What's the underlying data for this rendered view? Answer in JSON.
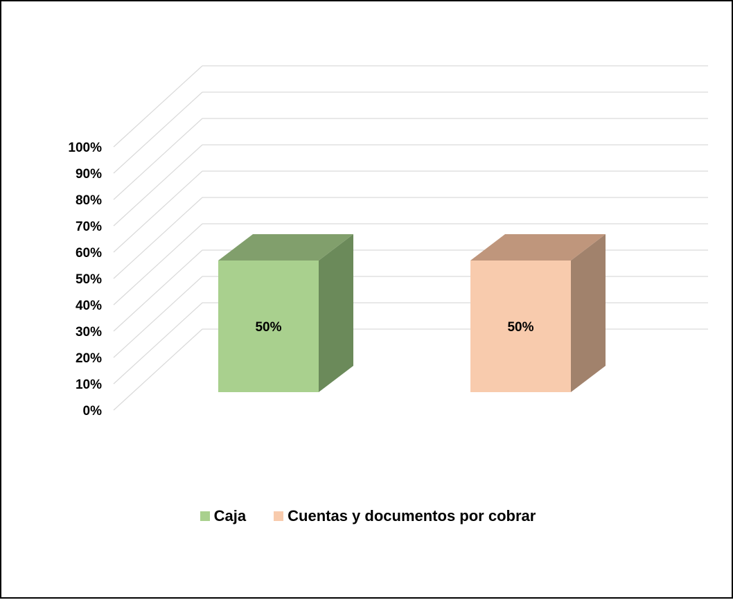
{
  "chart_data": {
    "type": "bar",
    "categories": [
      "Caja",
      "Cuentas y documentos por cobrar"
    ],
    "values": [
      50,
      50
    ],
    "value_suffix": "%",
    "data_labels": [
      "50%",
      "50%"
    ],
    "yticks": [
      "0%",
      "10%",
      "20%",
      "30%",
      "40%",
      "50%",
      "60%",
      "70%",
      "80%",
      "90%",
      "100%"
    ],
    "ylim": [
      0,
      100
    ],
    "grid": true,
    "legend_position": "bottom",
    "style": "3d-column",
    "colors": {
      "caja": {
        "front": "#a9d08e",
        "side": "#6b8a5a",
        "top": "#819f6c"
      },
      "cuentas": {
        "front": "#f8cbad",
        "side": "#a1826c",
        "top": "#bf967c"
      },
      "grid": "#d9d9d9"
    },
    "legend": [
      {
        "label": "Caja",
        "color": "#a9d08e"
      },
      {
        "label": "Cuentas y documentos por cobrar",
        "color": "#f8cbad"
      }
    ]
  }
}
